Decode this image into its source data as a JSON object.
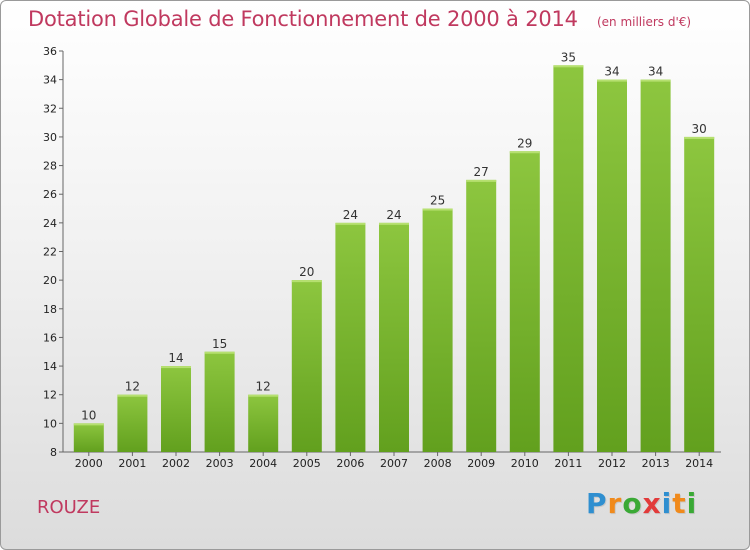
{
  "header": {
    "title": "Dotation Globale de Fonctionnement de 2000 à 2014",
    "subtitle": "(en milliers d'€)"
  },
  "commune": "ROUZE",
  "brand": {
    "text": "Proxiti",
    "colors": [
      "#2f8fd0",
      "#f08a1c",
      "#3aa935",
      "#e23a3a",
      "#2f8fd0",
      "#f08a1c",
      "#3aa935"
    ]
  },
  "chart_data": {
    "type": "bar",
    "title": "Dotation Globale de Fonctionnement de 2000 à 2014",
    "subtitle": "(en milliers d'€)",
    "xlabel": "",
    "ylabel": "",
    "categories": [
      "2000",
      "2001",
      "2002",
      "2003",
      "2004",
      "2005",
      "2006",
      "2007",
      "2008",
      "2009",
      "2010",
      "2011",
      "2012",
      "2013",
      "2014"
    ],
    "values": [
      10,
      12,
      14,
      15,
      12,
      20,
      24,
      24,
      25,
      27,
      29,
      35,
      34,
      34,
      30
    ],
    "ylim": [
      8,
      36
    ],
    "yticks": [
      8,
      10,
      12,
      14,
      16,
      18,
      20,
      22,
      24,
      26,
      28,
      30,
      32,
      34,
      36
    ],
    "grid": false,
    "bar_color": "#8dc63f",
    "bar_color_dark": "#62a01e"
  }
}
